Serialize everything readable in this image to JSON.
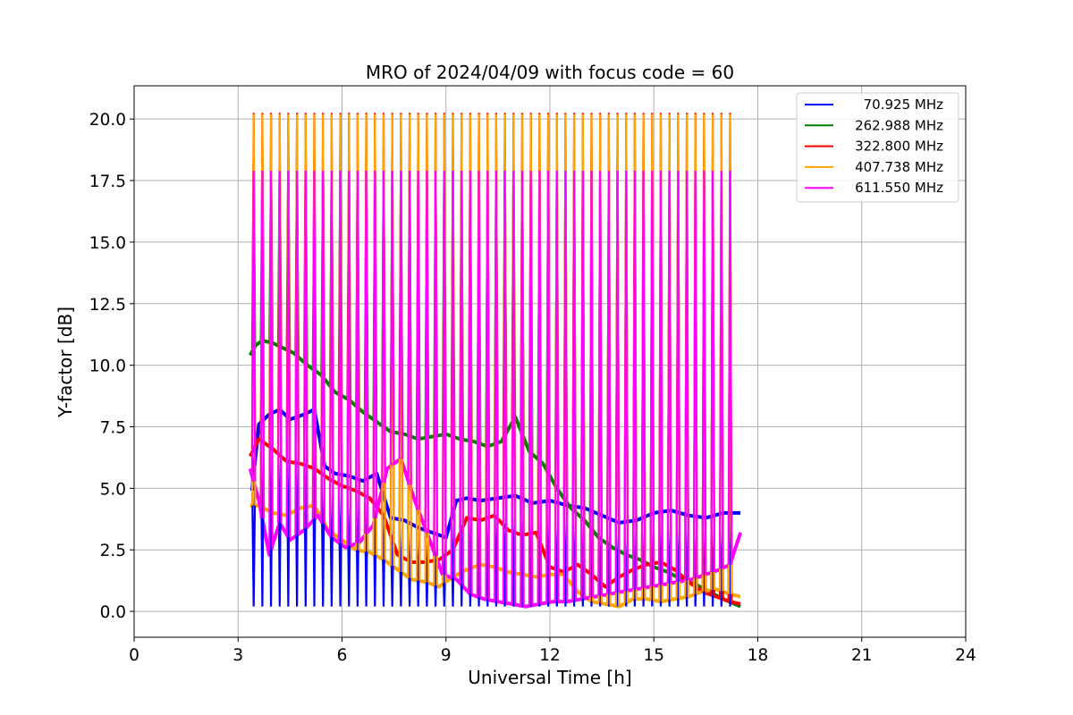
{
  "chart_data": {
    "type": "line",
    "title": "MRO of 2024/04/09 with focus code = 60",
    "xlabel": "Universal Time [h]",
    "ylabel": "Y-factor [dB]",
    "xlim": [
      0,
      24
    ],
    "ylim": [
      -1.05,
      21.35
    ],
    "x_ticks": [
      0,
      3,
      6,
      9,
      12,
      15,
      18,
      21,
      24
    ],
    "x_tick_labels": [
      "0",
      "3",
      "6",
      "9",
      "12",
      "15",
      "18",
      "21",
      "24"
    ],
    "y_ticks": [
      0,
      2.5,
      5,
      7.5,
      10,
      12.5,
      15,
      17.5,
      20
    ],
    "y_tick_labels": [
      "0.0",
      "2.5",
      "5.0",
      "7.5",
      "10.0",
      "12.5",
      "15.0",
      "17.5",
      "20.0"
    ],
    "grid": true,
    "legend_position": "top-right",
    "calibration_pulses": {
      "start_h": 3.45,
      "end_h": 17.3,
      "interval_h": 0.25,
      "peak_db": {
        "70.925 MHz": 0.2,
        "262.988 MHz": 18.9,
        "322.800 MHz": 20.25,
        "407.738 MHz": 20.2,
        "611.550 MHz": 17.9
      }
    },
    "series": [
      {
        "name": "70.925 MHz",
        "color": "#0000ff",
        "x": [
          3.4,
          3.6,
          3.9,
          4.2,
          4.5,
          4.9,
          5.2,
          5.5,
          5.8,
          6.2,
          6.6,
          7.0,
          7.4,
          7.8,
          8.2,
          8.6,
          9.0,
          9.3,
          9.6,
          10.0,
          10.5,
          11.0,
          11.5,
          12.0,
          12.5,
          13.0,
          13.5,
          14.0,
          14.5,
          15.0,
          15.5,
          16.0,
          16.5,
          17.0,
          17.5
        ],
        "y": [
          4.9,
          7.6,
          8.0,
          8.2,
          7.8,
          8.0,
          8.2,
          5.9,
          5.6,
          5.5,
          5.3,
          5.6,
          3.8,
          3.7,
          3.4,
          3.2,
          3.0,
          4.5,
          4.6,
          4.5,
          4.6,
          4.7,
          4.4,
          4.5,
          4.3,
          4.2,
          3.9,
          3.6,
          3.7,
          4.0,
          4.1,
          3.9,
          3.8,
          4.0,
          4.0
        ]
      },
      {
        "name": "262.988 MHz",
        "color": "#008000",
        "x": [
          3.35,
          3.5,
          3.7,
          4.0,
          4.3,
          4.6,
          5.0,
          5.4,
          5.8,
          6.2,
          6.6,
          7.0,
          7.4,
          7.8,
          8.2,
          8.6,
          9.0,
          9.4,
          9.8,
          10.2,
          10.6,
          11.0,
          11.4,
          11.8,
          12.2,
          12.6,
          13.0,
          13.4,
          13.8,
          14.2,
          14.6,
          15.0,
          15.4,
          15.8,
          16.2,
          16.6,
          17.0,
          17.5
        ],
        "y": [
          10.4,
          10.8,
          11.0,
          10.9,
          10.7,
          10.5,
          10.0,
          9.6,
          8.9,
          8.6,
          8.1,
          7.7,
          7.3,
          7.2,
          7.0,
          7.1,
          7.2,
          7.0,
          6.9,
          6.7,
          6.9,
          7.9,
          6.5,
          6.0,
          5.0,
          4.2,
          3.7,
          3.0,
          2.6,
          2.3,
          2.1,
          1.8,
          1.6,
          1.3,
          1.1,
          0.8,
          0.5,
          0.2
        ]
      },
      {
        "name": "322.800 MHz",
        "color": "#ff0000",
        "x": [
          3.35,
          3.6,
          4.0,
          4.4,
          4.8,
          5.2,
          5.6,
          6.0,
          6.4,
          6.8,
          7.2,
          7.6,
          8.0,
          8.4,
          8.8,
          9.2,
          9.6,
          10.0,
          10.4,
          10.8,
          11.2,
          11.6,
          12.0,
          12.4,
          12.8,
          13.2,
          13.6,
          14.0,
          14.4,
          14.8,
          15.2,
          15.6,
          16.0,
          16.4,
          16.8,
          17.2,
          17.5
        ],
        "y": [
          6.3,
          7.0,
          6.6,
          6.1,
          6.0,
          5.8,
          5.4,
          5.1,
          4.9,
          4.6,
          3.9,
          2.3,
          2.0,
          2.0,
          2.1,
          2.5,
          3.8,
          3.7,
          3.9,
          3.3,
          3.1,
          3.2,
          1.8,
          1.6,
          1.9,
          1.5,
          1.0,
          1.4,
          1.7,
          1.9,
          2.0,
          1.7,
          1.2,
          0.8,
          0.6,
          0.4,
          0.3
        ]
      },
      {
        "name": "407.738 MHz",
        "color": "#ffa500",
        "x": [
          3.35,
          3.6,
          4.0,
          4.4,
          4.8,
          5.2,
          5.6,
          6.0,
          6.4,
          6.8,
          7.2,
          7.6,
          8.0,
          8.4,
          8.8,
          9.2,
          9.6,
          10.0,
          10.4,
          10.8,
          11.2,
          11.6,
          12.0,
          12.4,
          12.8,
          13.2,
          13.6,
          14.0,
          14.4,
          14.8,
          15.2,
          15.6,
          16.0,
          16.4,
          16.8,
          17.2,
          17.5
        ],
        "y": [
          4.3,
          4.3,
          4.0,
          3.9,
          4.2,
          4.3,
          3.3,
          2.9,
          2.5,
          2.4,
          2.1,
          1.7,
          1.3,
          1.2,
          1.0,
          1.4,
          1.7,
          1.9,
          1.8,
          1.6,
          1.5,
          1.4,
          1.5,
          1.5,
          0.8,
          0.4,
          0.3,
          0.2,
          0.5,
          0.5,
          0.4,
          0.5,
          0.6,
          0.8,
          0.9,
          0.7,
          0.6
        ]
      },
      {
        "name": "611.550 MHz",
        "color": "#ff00ff",
        "x": [
          3.35,
          3.6,
          3.9,
          4.2,
          4.5,
          4.9,
          5.3,
          5.7,
          6.1,
          6.5,
          6.9,
          7.3,
          7.7,
          8.1,
          8.5,
          8.9,
          9.3,
          9.7,
          10.1,
          10.5,
          10.9,
          11.3,
          11.7,
          12.1,
          12.5,
          12.9,
          13.3,
          13.7,
          14.1,
          14.5,
          14.9,
          15.3,
          15.7,
          16.1,
          16.5,
          16.9,
          17.2,
          17.5
        ],
        "y": [
          5.8,
          4.5,
          2.3,
          3.6,
          2.9,
          3.3,
          3.9,
          3.0,
          2.6,
          2.8,
          3.5,
          5.8,
          6.2,
          4.5,
          3.0,
          1.5,
          1.3,
          0.7,
          0.5,
          0.4,
          0.3,
          0.2,
          0.3,
          0.4,
          0.4,
          0.5,
          0.6,
          0.7,
          0.8,
          0.9,
          1.0,
          1.1,
          1.2,
          1.3,
          1.5,
          1.7,
          1.9,
          3.2
        ]
      }
    ]
  }
}
